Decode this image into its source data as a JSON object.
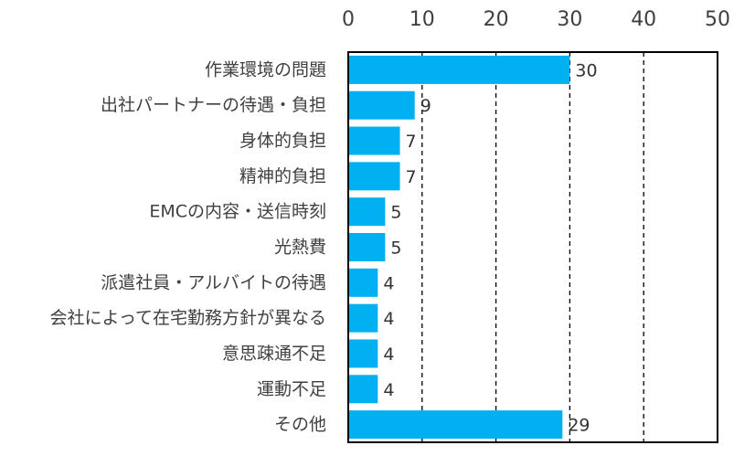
{
  "chart_data": {
    "type": "bar",
    "orientation": "horizontal",
    "title": "",
    "xlabel": "",
    "ylabel": "",
    "xlim": [
      0,
      50
    ],
    "x_ticks": [
      0,
      10,
      20,
      30,
      40,
      50
    ],
    "x_tick_labels": [
      "0",
      "10",
      "20",
      "30",
      "40",
      "50"
    ],
    "x_axis_position": "top",
    "grid": "vertical dashed",
    "legend": "none",
    "categories": [
      "作業環境の問題",
      "出社パートナーの待遇・負担",
      "身体的負担",
      "精神的負担",
      "EMCの内容・送信時刻",
      "光熱費",
      "派遣社員・アルバイトの待遇",
      "会社によって在宅勤務方針が異なる",
      "意思疎通不足",
      "運動不足",
      "その他"
    ],
    "values": [
      30,
      9,
      7,
      7,
      5,
      5,
      4,
      4,
      4,
      4,
      29
    ],
    "value_labels": [
      "30",
      "9",
      "7",
      "7",
      "5",
      "5",
      "4",
      "4",
      "4",
      "4",
      "29"
    ],
    "colors": {
      "bar": "#00B0F0",
      "axis": "#000000",
      "grid": "#000000",
      "text": "#404040"
    }
  }
}
